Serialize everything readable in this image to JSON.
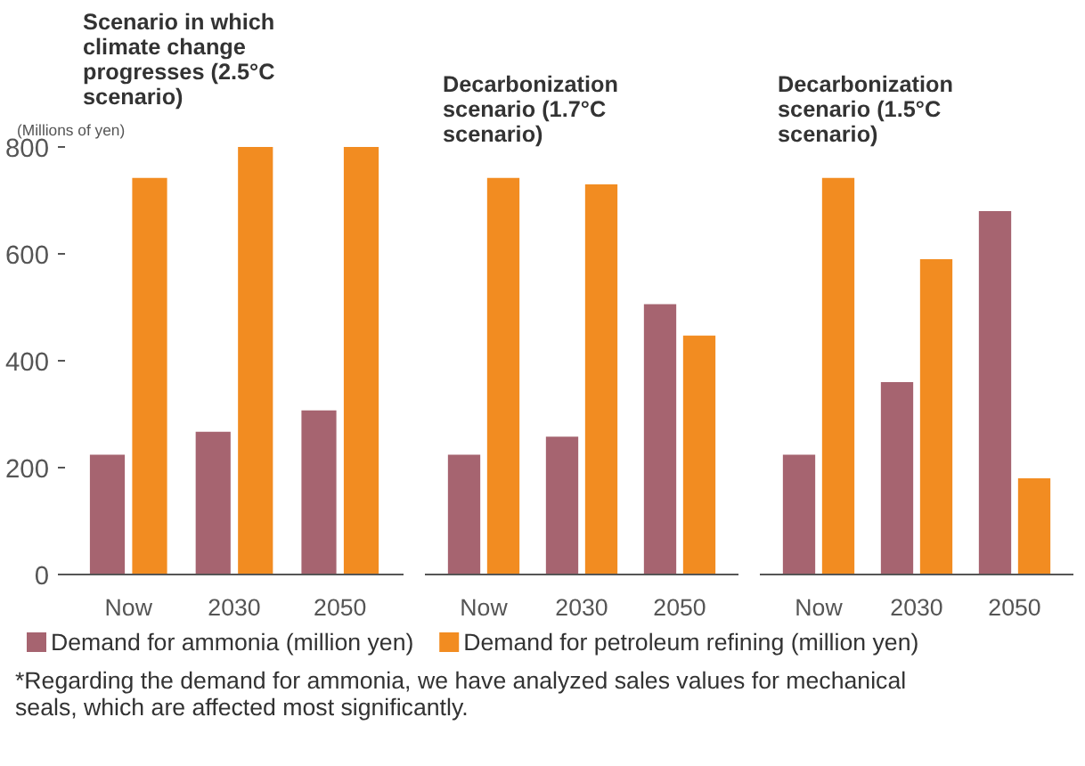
{
  "chart_data": [
    {
      "type": "bar",
      "title": "Scenario in which climate change progresses (2.5°C scenario)",
      "ylabel": "(Millions of yen)",
      "categories": [
        "Now",
        "2030",
        "2050"
      ],
      "ylim": [
        0,
        800
      ],
      "yticks": [
        0,
        200,
        400,
        600,
        800
      ],
      "grid": false,
      "legend": "bottom",
      "series": [
        {
          "name": "Demand for ammonia (million yen)",
          "color": "#a66470",
          "values": [
            224,
            267,
            307
          ]
        },
        {
          "name": "Demand for petroleum refining (million yen)",
          "color": "#f28c21",
          "values": [
            742,
            800,
            800
          ]
        }
      ],
      "annotations": [
        "*Regarding the demand for ammonia, we have analyzed sales values for mechanical seals, which are affected most significantly."
      ]
    },
    {
      "type": "bar",
      "title": "Decarbonization scenario (1.7°C scenario)",
      "categories": [
        "Now",
        "2030",
        "2050"
      ],
      "ylim": [
        0,
        800
      ],
      "tick_labels": "x",
      "grid": false,
      "series": [
        {
          "color": "#a66470",
          "values": [
            224,
            258,
            506
          ]
        },
        {
          "color": "#f28c21",
          "values": [
            742,
            730,
            447
          ]
        }
      ]
    },
    {
      "type": "bar",
      "title": "Decarbonization scenario (1.5°C scenario)",
      "categories": [
        "Now",
        "2030",
        "2050"
      ],
      "ylim": [
        0,
        800
      ],
      "tick_labels": "x",
      "grid": false,
      "series": [
        {
          "color": "#a66470",
          "values": [
            224,
            360,
            680
          ]
        },
        {
          "color": "#f28c21",
          "values": [
            742,
            590,
            180
          ]
        }
      ]
    }
  ]
}
